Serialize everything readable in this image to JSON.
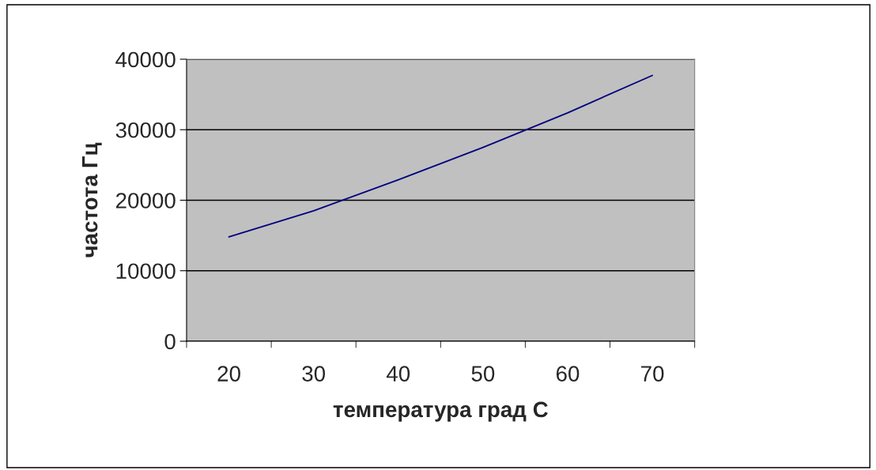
{
  "chart_data": {
    "type": "line",
    "xlabel": "температура град С",
    "ylabel": "частота Гц",
    "categories": [
      "20",
      "30",
      "40",
      "50",
      "60",
      "70"
    ],
    "series": [
      {
        "color": "#000080",
        "values": [
          14800,
          18500,
          22900,
          27500,
          32400,
          37700
        ]
      }
    ],
    "ylim": [
      0,
      40000
    ],
    "yticks": [
      0,
      10000,
      20000,
      30000,
      40000
    ],
    "grid": "y",
    "marker": "none",
    "line_style": "solid"
  }
}
